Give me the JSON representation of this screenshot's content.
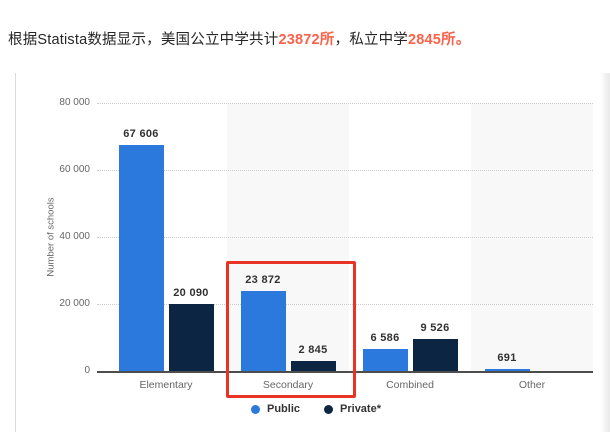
{
  "header": {
    "text_color": "#262626",
    "emphasis_color": "#fa624a",
    "segments": [
      {
        "text": "根据Statista数据显示，美国公立中学共计",
        "emphasis": false
      },
      {
        "text": "23872所",
        "emphasis": true
      },
      {
        "text": "，私立中学",
        "emphasis": false
      },
      {
        "text": "2845所。",
        "emphasis": true
      }
    ]
  },
  "chart_data": {
    "type": "bar",
    "title": "",
    "ylabel": "Number of schools",
    "xlabel": "",
    "categories": [
      "Elementary",
      "Secondary",
      "Combined",
      "Other"
    ],
    "series": [
      {
        "name": "Public",
        "color": "#2b79dc",
        "values": [
          67606,
          23872,
          6586,
          691
        ],
        "labels": [
          "67 606",
          "23 872",
          "6 586",
          "691"
        ]
      },
      {
        "name": "Private*",
        "color": "#0b2542",
        "values": [
          20090,
          2845,
          9526,
          null
        ],
        "labels": [
          "20 090",
          "2 845",
          "9 526",
          ""
        ]
      }
    ],
    "ylim": [
      0,
      80000
    ],
    "yticks": [
      0,
      20000,
      40000,
      60000,
      80000
    ],
    "ytick_labels": [
      "0",
      "20 000",
      "40 000",
      "60 000",
      "80 000"
    ],
    "grid": "horizontal dotted gridlines",
    "plot_bands": "light gray background on Secondary and Other columns",
    "legend_position": "bottom-center",
    "annotation": {
      "type": "red-highlight-rectangle",
      "target_category": "Secondary",
      "color": "#e93325"
    }
  }
}
